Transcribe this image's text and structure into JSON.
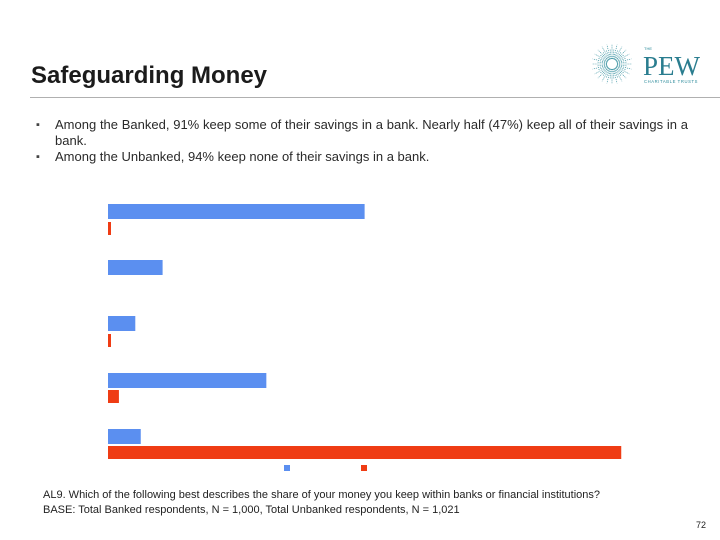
{
  "slide": {
    "title": "Safeguarding Money",
    "bullets": [
      "Among the Banked, 91% keep some of their savings in a bank.  Nearly half (47%) keep all of their savings in a bank.",
      "Among the Unbanked, 94% keep none of their savings in a bank."
    ],
    "footnote_q": "AL9. Which of the following best describes the share of your money you keep within banks or financial institutions?",
    "footnote_base": "BASE:  Total Banked respondents, N = 1,000, Total Unbanked respondents, N = 1,021",
    "page_number": "72"
  },
  "logo": {
    "the": "THE",
    "name": "PEW",
    "sub": "CHARITABLE TRUSTS",
    "color": "#2a8a9a"
  },
  "chart_data": {
    "type": "bar",
    "orientation": "horizontal",
    "categories": [
      "",
      "",
      "",
      "",
      ""
    ],
    "series": [
      {
        "color": "#5b8ff0",
        "values": [
          47,
          10,
          5,
          29,
          6
        ]
      },
      {
        "color": "#ef3c14",
        "values": [
          0.5,
          0,
          0.5,
          2,
          94
        ]
      }
    ],
    "xlim": [
      0,
      100
    ],
    "grid": false,
    "legend": "bottom-center"
  }
}
